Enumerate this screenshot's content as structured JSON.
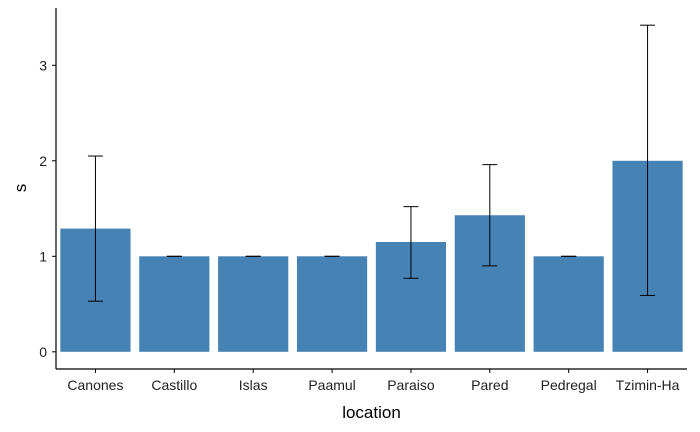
{
  "chart_data": {
    "type": "bar",
    "title": "",
    "xlabel": "location",
    "ylabel": "s",
    "categories": [
      "Canones",
      "Castillo",
      "Islas",
      "Paamul",
      "Paraiso",
      "Pared",
      "Pedregal",
      "Tzimin-Ha"
    ],
    "values": [
      1.29,
      1.0,
      1.0,
      1.0,
      1.15,
      1.43,
      1.0,
      2.0
    ],
    "error_low": [
      0.53,
      1.0,
      1.0,
      1.0,
      0.77,
      0.9,
      1.0,
      0.59
    ],
    "error_high": [
      2.05,
      1.0,
      1.0,
      1.0,
      1.52,
      1.96,
      1.0,
      3.42
    ],
    "yticks": [
      0,
      1,
      2,
      3
    ],
    "ylim": [
      -0.18,
      3.6
    ],
    "grid": false,
    "colors": {
      "bar": "#4682b4",
      "error_bar": "#000000"
    }
  }
}
